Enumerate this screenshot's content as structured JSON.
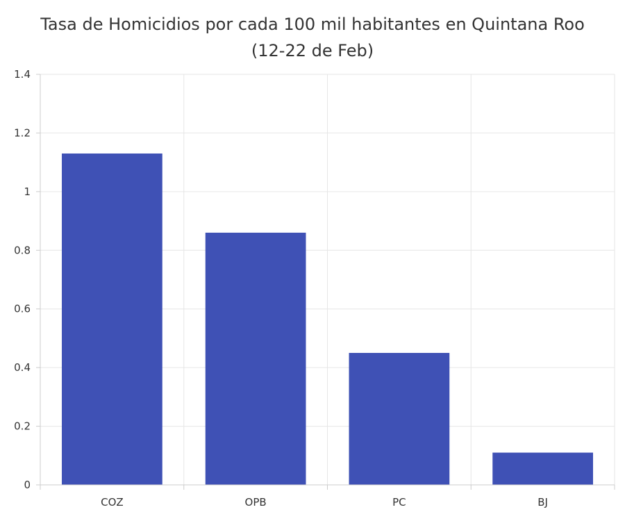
{
  "chart_data": {
    "type": "bar",
    "title": "Tasa de Homicidios por cada 100 mil habitantes en Quintana Roo",
    "subtitle": "(12-22 de Feb)",
    "categories": [
      "COZ",
      "OPB",
      "PC",
      "BJ"
    ],
    "values": [
      1.13,
      0.86,
      0.45,
      0.11
    ],
    "xlabel": "",
    "ylabel": "",
    "ylim": [
      0,
      1.4
    ],
    "yticks": [
      0,
      0.2,
      0.4,
      0.6,
      0.8,
      1,
      1.2,
      1.4
    ],
    "ytick_labels": [
      "0",
      "0.2",
      "0.4",
      "0.6",
      "0.8",
      "1",
      "1.2",
      "1.4"
    ],
    "grid": true,
    "legend": "none",
    "bar_color": "#3f51b5"
  }
}
